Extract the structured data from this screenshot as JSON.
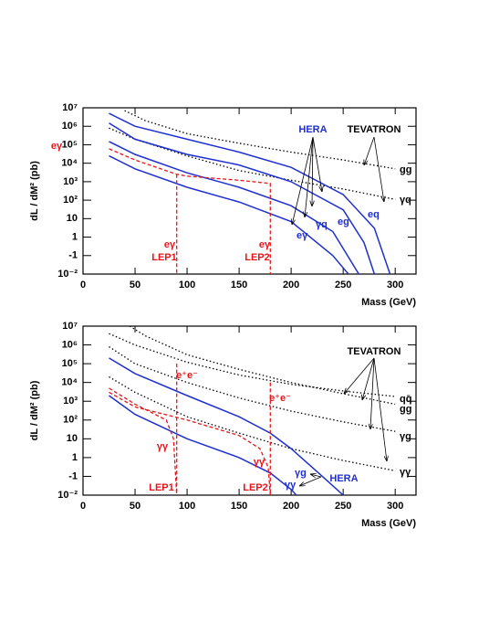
{
  "chart_data": [
    {
      "type": "line",
      "x_label": "Mass   (GeV)",
      "y_label": "dL / dM²   (pb)",
      "log_y": true,
      "xlim": [
        0,
        320
      ],
      "xticks": [
        0,
        50,
        100,
        150,
        200,
        250,
        300
      ],
      "ylim": [
        0.01,
        10000000
      ],
      "yticks": [
        {
          "value": 0.01,
          "label": "10⁻²"
        },
        {
          "value": 0.1,
          "label": "-1"
        },
        1,
        10,
        {
          "value": 100,
          "label": "10²"
        },
        {
          "value": 1000,
          "label": "10³"
        },
        {
          "value": 10000,
          "label": "10⁴"
        },
        {
          "value": 100000,
          "label": "10⁵"
        },
        {
          "value": 1000000,
          "label": "10⁶"
        },
        {
          "value": 10000000,
          "label": "10⁷"
        }
      ],
      "series": [
        {
          "name": "gg",
          "color": "#000000",
          "style": "dotted",
          "x": [
            40,
            60,
            100,
            150,
            200,
            250,
            300
          ],
          "values": [
            7000000,
            2000000,
            400000,
            120000,
            40000,
            15000,
            5000
          ]
        },
        {
          "name": "γq",
          "color": "#000000",
          "style": "dotted",
          "x": [
            25,
            50,
            100,
            150,
            200,
            250,
            300
          ],
          "values": [
            800000,
            200000,
            25000,
            4000,
            1200,
            400,
            110
          ]
        },
        {
          "name": "eq",
          "color": "#1f2fd0",
          "style": "solid",
          "x": [
            25,
            50,
            100,
            150,
            200,
            250,
            280,
            295
          ],
          "values": [
            5000000,
            1000000,
            200000,
            40000,
            6000,
            200,
            3,
            0.01
          ]
        },
        {
          "name": "eg",
          "color": "#1f2fd0",
          "style": "solid",
          "x": [
            25,
            50,
            100,
            150,
            200,
            250,
            270,
            280
          ],
          "values": [
            1500000,
            200000,
            30000,
            8000,
            1000,
            30,
            0.5,
            0.01
          ]
        },
        {
          "name": "γq",
          "color": "#1f2fd0",
          "style": "solid",
          "x": [
            25,
            50,
            100,
            150,
            200,
            240,
            265
          ],
          "values": [
            150000,
            30000,
            3000,
            500,
            50,
            2,
            0.01
          ]
        },
        {
          "name": "eγ",
          "color": "#1f2fd0",
          "style": "solid",
          "x": [
            25,
            50,
            100,
            150,
            200,
            240,
            255
          ],
          "values": [
            25000,
            5000,
            500,
            80,
            7,
            0.1,
            0.01
          ]
        },
        {
          "color": "#e8141b",
          "style": "dashed",
          "x": [
            25,
            50,
            90,
            100,
            150,
            180,
            180
          ],
          "values": [
            60000,
            15000,
            2500,
            2000,
            1200,
            800,
            0.01
          ]
        },
        {
          "color": "#e8141b",
          "style": "dashed",
          "x": [
            90,
            90
          ],
          "values": [
            2500,
            0.01
          ]
        }
      ],
      "annotations": [
        {
          "text": "HERA",
          "color": "#1f2fd0"
        },
        {
          "text": "TEVATRON",
          "color": "#000000"
        },
        {
          "text": "eγ",
          "color": "#e8141b"
        },
        {
          "text": "eγ",
          "color": "#e8141b"
        },
        {
          "text": "LEP1",
          "color": "#e8141b"
        },
        {
          "text": "eγ",
          "color": "#e8141b"
        },
        {
          "text": "LEP2",
          "color": "#e8141b"
        }
      ]
    },
    {
      "type": "line",
      "x_label": "Mass   (GeV)",
      "y_label": "dL / dM²   (pb)",
      "log_y": true,
      "xlim": [
        0,
        320
      ],
      "xticks": [
        0,
        50,
        100,
        150,
        200,
        250,
        300
      ],
      "ylim": [
        0.01,
        10000000
      ],
      "yticks": [
        {
          "value": 0.01,
          "label": "10⁻²"
        },
        {
          "value": 0.1,
          "label": "-1"
        },
        1,
        10,
        {
          "value": 100,
          "label": "10²"
        },
        {
          "value": 1000,
          "label": "10³"
        },
        {
          "value": 10000,
          "label": "10⁴"
        },
        {
          "value": 100000,
          "label": "10⁵"
        },
        {
          "value": 1000000,
          "label": "10⁶"
        },
        {
          "value": 10000000,
          "label": "10⁷"
        }
      ],
      "series": [
        {
          "name": "qq̄",
          "color": "#000000",
          "style": "dotted",
          "x": [
            25,
            50,
            100,
            150,
            200,
            250,
            300
          ],
          "values": [
            4000000,
            1000000,
            120000,
            25000,
            8000,
            3500,
            1800
          ]
        },
        {
          "name": "gg",
          "color": "#000000",
          "style": "dotted",
          "x": [
            45,
            60,
            100,
            150,
            200,
            250,
            300
          ],
          "values": [
            10000000,
            3000000,
            300000,
            50000,
            10000,
            2500,
            700
          ]
        },
        {
          "name": "γg",
          "color": "#000000",
          "style": "dotted",
          "x": [
            25,
            50,
            100,
            150,
            200,
            250,
            300
          ],
          "values": [
            800000,
            100000,
            10000,
            1500,
            300,
            80,
            25
          ]
        },
        {
          "name": "γγ",
          "color": "#000000",
          "style": "dotted",
          "x": [
            25,
            50,
            100,
            150,
            200,
            250,
            300
          ],
          "values": [
            20000,
            3000,
            150,
            20,
            3,
            0.7,
            0.2
          ]
        },
        {
          "name": "γg",
          "color": "#1f2fd0",
          "style": "solid",
          "x": [
            25,
            50,
            100,
            150,
            180,
            200,
            230,
            250
          ],
          "values": [
            200000,
            30000,
            2000,
            150,
            20,
            3,
            0.1,
            0.01
          ]
        },
        {
          "name": "γγ",
          "color": "#1f2fd0",
          "style": "solid",
          "x": [
            25,
            50,
            100,
            150,
            180,
            200,
            205
          ],
          "values": [
            2000,
            200,
            10,
            1,
            0.15,
            0.02,
            0.01
          ]
        },
        {
          "color": "#e8141b",
          "style": "dashed",
          "x": [
            25,
            50,
            80,
            87,
            90
          ],
          "values": [
            5000,
            700,
            100,
            10,
            0.01
          ]
        },
        {
          "color": "#e8141b",
          "style": "dashed",
          "x": [
            25,
            50,
            100,
            150,
            170,
            178,
            180
          ],
          "values": [
            3000,
            500,
            100,
            15,
            3,
            0.3,
            0.01
          ]
        },
        {
          "color": "#e8141b",
          "style": "dashed",
          "x": [
            90,
            90
          ],
          "values": [
            100000,
            0.01
          ]
        },
        {
          "color": "#e8141b",
          "style": "dashed",
          "x": [
            180,
            180
          ],
          "values": [
            10000,
            0.01
          ]
        }
      ],
      "annotations": [
        {
          "text": "HERA",
          "color": "#1f2fd0"
        },
        {
          "text": "TEVATRON",
          "color": "#000000"
        },
        {
          "text": "e⁺e⁻",
          "color": "#e8141b"
        },
        {
          "text": "e⁺e⁻",
          "color": "#e8141b"
        },
        {
          "text": "γγ",
          "color": "#e8141b"
        },
        {
          "text": "γγ",
          "color": "#e8141b"
        },
        {
          "text": "LEP1",
          "color": "#e8141b"
        },
        {
          "text": "LEP2",
          "color": "#e8141b"
        }
      ]
    }
  ]
}
